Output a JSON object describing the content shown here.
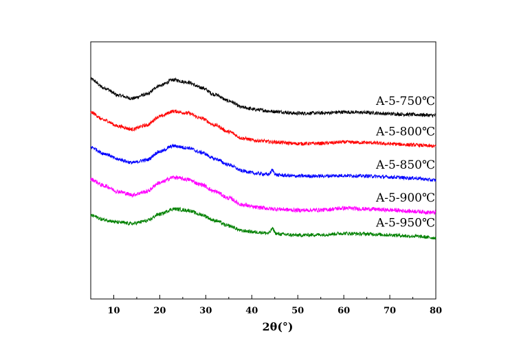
{
  "chart_data": {
    "type": "line",
    "xlabel": "2θ(°)",
    "ylabel": "",
    "xlim": [
      5,
      80
    ],
    "ylim": [
      0,
      100
    ],
    "x_ticks": [
      10,
      20,
      30,
      40,
      50,
      60,
      70,
      80
    ],
    "x_minor_step": 5,
    "y_ticks_shown": false,
    "grid": false,
    "legend": "inline-right",
    "series": [
      {
        "name": "A-5-750℃",
        "color": "#000000",
        "noise": 1.4,
        "points": [
          [
            5,
            85.5
          ],
          [
            8,
            82.0
          ],
          [
            11,
            79.2
          ],
          [
            14,
            78.0
          ],
          [
            17,
            79.5
          ],
          [
            20,
            83.0
          ],
          [
            23,
            85.2
          ],
          [
            26,
            84.3
          ],
          [
            29,
            82.2
          ],
          [
            32,
            79.5
          ],
          [
            35,
            77.0
          ],
          [
            38,
            74.5
          ],
          [
            41,
            73.6
          ],
          [
            45,
            72.9
          ],
          [
            50,
            72.2
          ],
          [
            55,
            72.3
          ],
          [
            60,
            72.7
          ],
          [
            65,
            72.5
          ],
          [
            70,
            72.0
          ],
          [
            75,
            71.7
          ],
          [
            80,
            71.4
          ]
        ],
        "peaks": []
      },
      {
        "name": "A-5-800℃",
        "color": "#ff0000",
        "noise": 1.4,
        "points": [
          [
            5,
            72.5
          ],
          [
            8,
            69.5
          ],
          [
            11,
            67.2
          ],
          [
            14,
            66.0
          ],
          [
            17,
            67.5
          ],
          [
            20,
            71.0
          ],
          [
            23,
            73.0
          ],
          [
            26,
            72.3
          ],
          [
            29,
            70.3
          ],
          [
            32,
            67.6
          ],
          [
            35,
            65.0
          ],
          [
            38,
            62.5
          ],
          [
            41,
            61.6
          ],
          [
            45,
            61.0
          ],
          [
            50,
            60.4
          ],
          [
            55,
            60.5
          ],
          [
            60,
            61.0
          ],
          [
            65,
            60.8
          ],
          [
            70,
            60.3
          ],
          [
            75,
            59.9
          ],
          [
            80,
            59.4
          ]
        ],
        "peaks": []
      },
      {
        "name": "A-5-850℃",
        "color": "#0000ff",
        "noise": 1.4,
        "points": [
          [
            5,
            59.0
          ],
          [
            8,
            56.5
          ],
          [
            11,
            54.3
          ],
          [
            14,
            53.0
          ],
          [
            17,
            54.0
          ],
          [
            20,
            57.3
          ],
          [
            23,
            59.5
          ],
          [
            26,
            58.8
          ],
          [
            29,
            57.0
          ],
          [
            32,
            54.5
          ],
          [
            35,
            52.2
          ],
          [
            38,
            49.8
          ],
          [
            41,
            48.8
          ],
          [
            45,
            48.2
          ],
          [
            50,
            47.8
          ],
          [
            55,
            47.8
          ],
          [
            60,
            48.0
          ],
          [
            65,
            47.8
          ],
          [
            70,
            47.4
          ],
          [
            75,
            47.0
          ],
          [
            80,
            46.2
          ]
        ],
        "peaks": [
          [
            44.5,
            1.8,
            0.5
          ]
        ]
      },
      {
        "name": "A-5-900℃",
        "color": "#ff00ff",
        "noise": 1.6,
        "points": [
          [
            5,
            46.5
          ],
          [
            8,
            44.0
          ],
          [
            11,
            41.8
          ],
          [
            14,
            40.5
          ],
          [
            17,
            41.7
          ],
          [
            20,
            45.2
          ],
          [
            23,
            47.3
          ],
          [
            26,
            46.5
          ],
          [
            29,
            44.5
          ],
          [
            32,
            41.8
          ],
          [
            35,
            39.2
          ],
          [
            38,
            36.6
          ],
          [
            41,
            35.6
          ],
          [
            45,
            35.0
          ],
          [
            50,
            34.5
          ],
          [
            55,
            34.6
          ],
          [
            60,
            35.3
          ],
          [
            65,
            35.0
          ],
          [
            70,
            34.6
          ],
          [
            75,
            34.1
          ],
          [
            80,
            33.6
          ]
        ],
        "peaks": []
      },
      {
        "name": "A-5-950℃",
        "color": "#008000",
        "noise": 1.4,
        "points": [
          [
            5,
            32.5
          ],
          [
            8,
            30.8
          ],
          [
            11,
            29.8
          ],
          [
            14,
            29.3
          ],
          [
            17,
            30.3
          ],
          [
            20,
            33.0
          ],
          [
            23,
            35.0
          ],
          [
            26,
            34.5
          ],
          [
            29,
            32.8
          ],
          [
            32,
            30.5
          ],
          [
            35,
            28.4
          ],
          [
            38,
            26.5
          ],
          [
            41,
            26.0
          ],
          [
            45,
            25.3
          ],
          [
            50,
            24.8
          ],
          [
            55,
            25.0
          ],
          [
            60,
            25.5
          ],
          [
            65,
            25.3
          ],
          [
            70,
            24.9
          ],
          [
            75,
            24.4
          ],
          [
            80,
            23.8
          ]
        ],
        "peaks": [
          [
            44.5,
            2.0,
            0.5
          ]
        ]
      }
    ]
  }
}
